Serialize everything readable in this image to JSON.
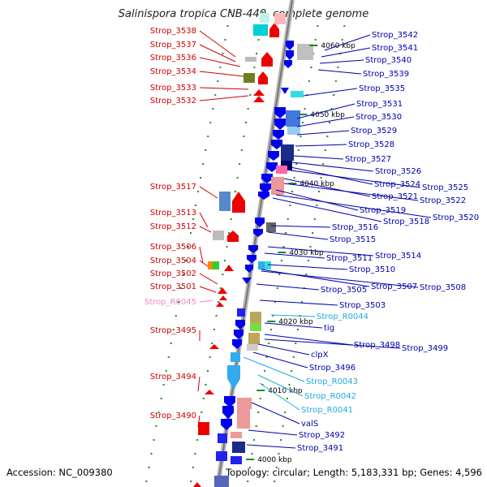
{
  "title": "Salinispora tropica CNB-440, complete genome",
  "accession": "Accession: NC_009380",
  "genome_info": "Topology: circular; Length: 5,183,331 bp; Genes: 4,596",
  "colors": {
    "left_label": "#cc0000",
    "right_label": "#0000aa",
    "rna_label": "#22aadd",
    "pseudo_label": "#ee88bb",
    "backbone": "#888888",
    "tick": "#228822"
  },
  "ruler": [
    {
      "text": "4060 kbp"
    },
    {
      "text": "4050 kbp"
    },
    {
      "text": "4040 kbp"
    },
    {
      "text": "4030 kbp"
    },
    {
      "text": "4020 kbp"
    },
    {
      "text": "4010 kbp"
    },
    {
      "text": "4000 kbp"
    }
  ],
  "left_labels": [
    {
      "text": "Strop_3538",
      "kind": "gene"
    },
    {
      "text": "Strop_3537",
      "kind": "gene"
    },
    {
      "text": "Strop_3536",
      "kind": "gene"
    },
    {
      "text": "Strop_3534",
      "kind": "gene"
    },
    {
      "text": "Strop_3533",
      "kind": "gene"
    },
    {
      "text": "Strop_3532",
      "kind": "gene"
    },
    {
      "text": "Strop_3517",
      "kind": "gene"
    },
    {
      "text": "Strop_3513",
      "kind": "gene"
    },
    {
      "text": "Strop_3512",
      "kind": "gene"
    },
    {
      "text": "Strop_3506",
      "kind": "gene"
    },
    {
      "text": "Strop_3504",
      "kind": "gene"
    },
    {
      "text": "Strop_3502",
      "kind": "gene"
    },
    {
      "text": "Strop_3501",
      "kind": "gene"
    },
    {
      "text": "Strop_R0045",
      "kind": "pseudo"
    },
    {
      "text": "Strop_3495",
      "kind": "gene"
    },
    {
      "text": "Strop_3494",
      "kind": "gene"
    },
    {
      "text": "Strop_3490",
      "kind": "gene"
    }
  ],
  "right_labels": [
    {
      "text": "Strop_3542",
      "kind": "gene"
    },
    {
      "text": "Strop_3541",
      "kind": "gene"
    },
    {
      "text": "Strop_3540",
      "kind": "gene"
    },
    {
      "text": "Strop_3539",
      "kind": "gene"
    },
    {
      "text": "Strop_3535",
      "kind": "gene"
    },
    {
      "text": "Strop_3531",
      "kind": "gene"
    },
    {
      "text": "Strop_3530",
      "kind": "gene"
    },
    {
      "text": "Strop_3529",
      "kind": "gene"
    },
    {
      "text": "Strop_3528",
      "kind": "gene"
    },
    {
      "text": "Strop_3527",
      "kind": "gene"
    },
    {
      "text": "Strop_3526",
      "kind": "gene"
    },
    {
      "text": "Strop_3524",
      "kind": "gene"
    },
    {
      "text": "Strop_3525",
      "kind": "gene"
    },
    {
      "text": "Strop_3521",
      "kind": "gene"
    },
    {
      "text": "Strop_3522",
      "kind": "gene"
    },
    {
      "text": "Strop_3519",
      "kind": "gene"
    },
    {
      "text": "Strop_3520",
      "kind": "gene"
    },
    {
      "text": "Strop_3518",
      "kind": "gene"
    },
    {
      "text": "Strop_3516",
      "kind": "gene"
    },
    {
      "text": "Strop_3515",
      "kind": "gene"
    },
    {
      "text": "Strop_3514",
      "kind": "gene"
    },
    {
      "text": "Strop_3511",
      "kind": "gene"
    },
    {
      "text": "Strop_3510",
      "kind": "gene"
    },
    {
      "text": "Strop_3507",
      "kind": "gene"
    },
    {
      "text": "Strop_3508",
      "kind": "gene"
    },
    {
      "text": "Strop_3505",
      "kind": "gene"
    },
    {
      "text": "Strop_3503",
      "kind": "gene"
    },
    {
      "text": "Strop_R0044",
      "kind": "rna"
    },
    {
      "text": "tig",
      "kind": "gene"
    },
    {
      "text": "Strop_3498",
      "kind": "gene"
    },
    {
      "text": "Strop_3499",
      "kind": "gene"
    },
    {
      "text": "clpX",
      "kind": "gene"
    },
    {
      "text": "Strop_3496",
      "kind": "gene"
    },
    {
      "text": "Strop_R0043",
      "kind": "rna"
    },
    {
      "text": "Strop_R0042",
      "kind": "rna"
    },
    {
      "text": "Strop_R0041",
      "kind": "rna"
    },
    {
      "text": "valS",
      "kind": "gene"
    },
    {
      "text": "Strop_3492",
      "kind": "gene"
    },
    {
      "text": "Strop_3491",
      "kind": "gene"
    }
  ]
}
